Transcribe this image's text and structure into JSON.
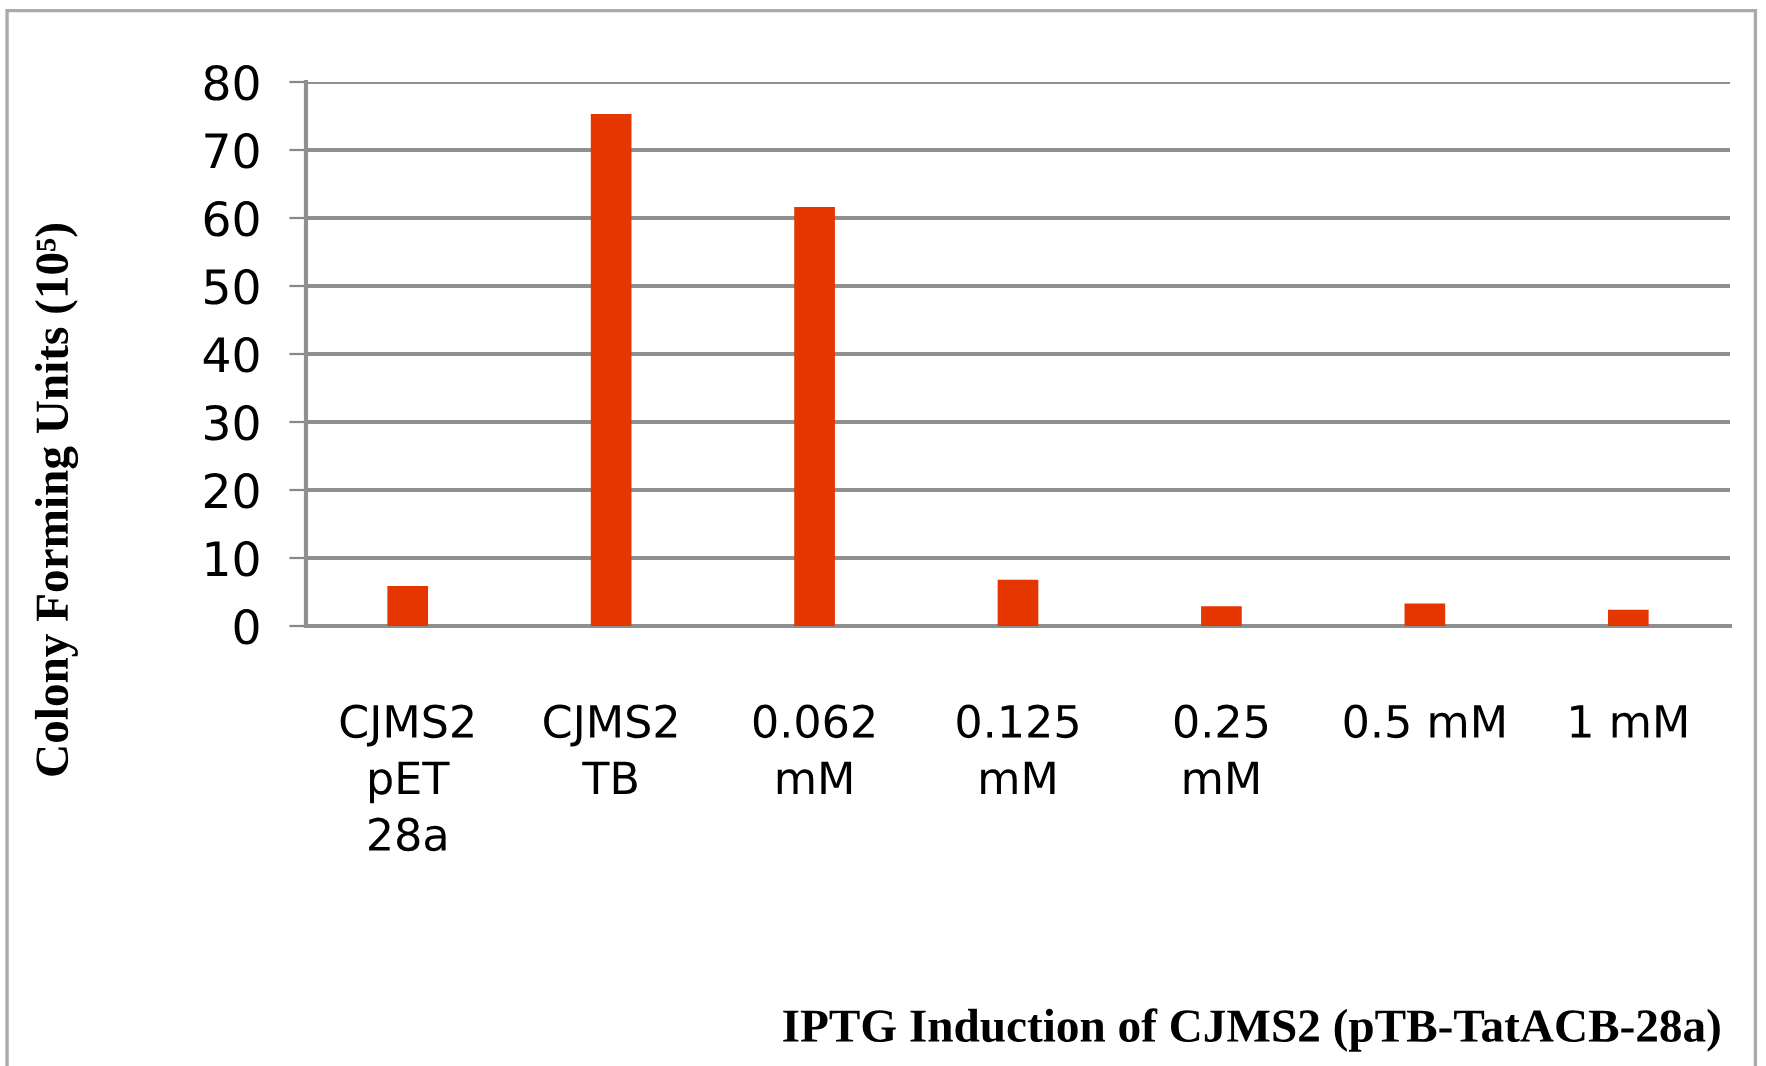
{
  "chart_data": {
    "type": "bar",
    "xlabel": "IPTG Induction of CJMS2 (pTB-TatACB-28a)",
    "ylabel": "Colony Forming Units (10⁵)",
    "categories": [
      "CJMS2\npET\n28a",
      "CJMS2\nTB",
      "0.062\nmM",
      "0.125\nmM",
      "0.25\nmM",
      "0.5 mM",
      "1 mM"
    ],
    "values": [
      5.9,
      75.3,
      61.6,
      6.8,
      2.9,
      3.3,
      2.4
    ],
    "color": "#e63600",
    "ylim": [
      0,
      80
    ],
    "yticks": [
      0,
      10,
      20,
      30,
      40,
      50,
      60,
      70,
      80
    ],
    "grid": "y",
    "legend": false
  }
}
